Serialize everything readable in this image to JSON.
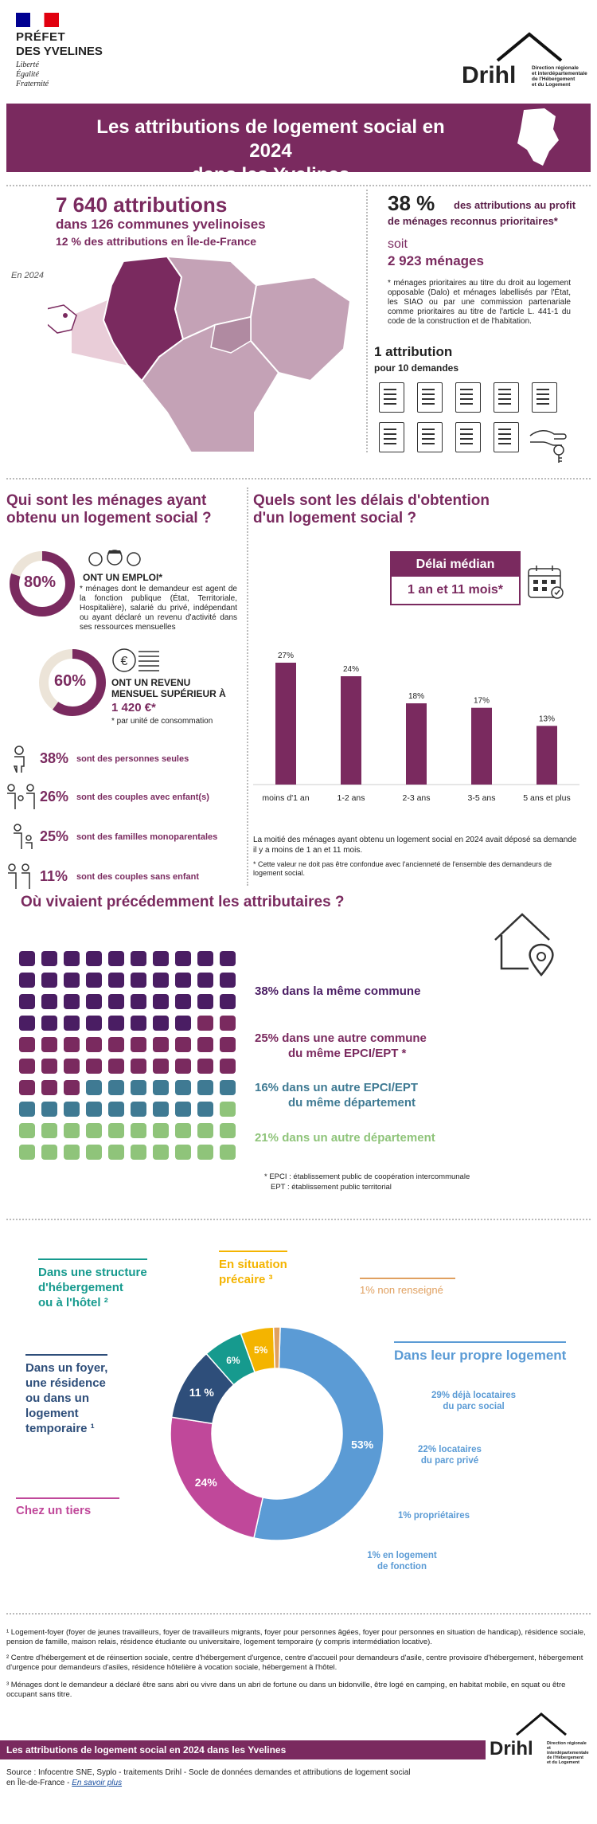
{
  "header": {
    "prefet_line1": "PRÉFET",
    "prefet_line2": "DES YVELINES",
    "motto1": "Liberté",
    "motto2": "Égalité",
    "motto3": "Fraternité",
    "drihl_name": "Drihl",
    "drihl_desc1": "Direction régionale",
    "drihl_desc2": "et interdépartementale",
    "drihl_desc3": "de l'Hébergement",
    "drihl_desc4": "et du Logement"
  },
  "banner": {
    "line1": "Les attributions de logement social en 2024",
    "line2": "dans les Yvelines"
  },
  "summary": {
    "attributions": "7 640 attributions",
    "communes": "dans 126 communes yvelinoises",
    "share_idf": "12 % des attributions en Île-de-France",
    "year_label": "En 2024",
    "prio_pct": "38 %",
    "prio_text1": "des attributions au profit",
    "prio_text2": "de ménages reconnus prioritaires*",
    "soit": "soit",
    "prio_count": "2 923 ménages",
    "prio_note": "* ménages prioritaires au titre du droit au logement opposable (Dalo) et ménages labellisés par l'État, les SIAO ou par une commission partenariale comme prioritaires au titre de l'article L. 441-1 du code de la construction et de l'habitation.",
    "ratio_title": "1 attribution",
    "ratio_sub": "pour 10 demandes"
  },
  "households": {
    "title1": "Qui sont les ménages ayant",
    "title2": "obtenu un logement social ?",
    "emploi_pct": "80%",
    "emploi_value": 0.8,
    "emploi_title": "ONT UN EMPLOI*",
    "emploi_note": "* ménages dont le demandeur est agent de la fonction publique (État, Territoriale, Hospitalière), salarié du privé, indépendant ou ayant déclaré un revenu d'activité dans ses ressources mensuelles",
    "revenu_pct": "60%",
    "revenu_value": 0.6,
    "revenu_title1": "ONT UN REVENU",
    "revenu_title2": "MENSUEL SUPÉRIEUR À",
    "revenu_amount": "1 420 €*",
    "revenu_note": "* par unité de consommation",
    "composition": [
      {
        "pct": "38%",
        "label": "sont des personnes seules"
      },
      {
        "pct": "26%",
        "label": "sont des couples avec enfant(s)"
      },
      {
        "pct": "25%",
        "label": "sont des familles monoparentales"
      },
      {
        "pct": "11%",
        "label": "sont des couples sans enfant"
      }
    ]
  },
  "delays": {
    "title1": "Quels sont les délais d'obtention",
    "title2": "d'un logement social ?",
    "median_label": "Délai médian",
    "median_value": "1 an et 11 mois*",
    "note_main": "La moitié des ménages ayant obtenu un logement social en 2024 avait déposé sa demande il y a moins de 1 an et 11 mois.",
    "note_star": "* Cette valeur ne doit pas être confondue avec l'ancienneté de l'ensemble des demandeurs de logement social."
  },
  "chart_data": {
    "type": "bar",
    "categories": [
      "moins d'1 an",
      "1-2 ans",
      "2-3 ans",
      "3-5 ans",
      "5 ans et plus"
    ],
    "values": [
      27,
      24,
      18,
      17,
      13
    ],
    "value_labels": [
      "27%",
      "24%",
      "18%",
      "17%",
      "13%"
    ],
    "ylim": [
      0,
      30
    ]
  },
  "origin": {
    "title": "Où vivaient précédemment les attributaires ?",
    "items": [
      {
        "l1": "38% dans la même commune",
        "l2": "",
        "color": "#4a1d63",
        "count": 38
      },
      {
        "l1": "25% dans une autre commune",
        "l2": "du même EPCI/EPT *",
        "color": "#7a2a5f",
        "count": 25
      },
      {
        "l1": "16% dans un autre EPCI/EPT",
        "l2": "du même département",
        "color": "#3f7a93",
        "count": 16
      },
      {
        "l1": "21% dans un autre département",
        "l2": "",
        "color": "#8fc47a",
        "count": 21
      }
    ],
    "note1": "* EPCI : établissement public de coopération intercommunale",
    "note2": "EPT : établissement public territorial"
  },
  "housing_donut": {
    "segments": [
      {
        "label": "53%",
        "value": 53,
        "color": "#5b9bd5"
      },
      {
        "label": "24%",
        "value": 24,
        "color": "#c0489a"
      },
      {
        "label": "11 %",
        "value": 11,
        "color": "#2e4e7a"
      },
      {
        "label": "6%",
        "value": 6,
        "color": "#169a8e"
      },
      {
        "label": "5%",
        "value": 5,
        "color": "#f4b400"
      },
      {
        "label": "",
        "value": 1,
        "color": "#e0a060"
      }
    ],
    "propre": "Dans leur propre logement",
    "propre_details": [
      {
        "l1": "29% déjà locataires",
        "l2": "du parc social"
      },
      {
        "l1": "22% locataires",
        "l2": "du parc privé"
      },
      {
        "l1": "1% propriétaires",
        "l2": ""
      },
      {
        "l1": "1% en logement",
        "l2": "de fonction"
      }
    ],
    "tiers": "Chez un tiers",
    "foyer1": "Dans un foyer,",
    "foyer2": "une résidence",
    "foyer3": "ou dans un",
    "foyer4": "logement",
    "foyer5": "temporaire ¹",
    "struct1": "Dans une structure",
    "struct2": "d'hébergement",
    "struct3": "ou à l'hôtel ²",
    "precaire1": "En situation",
    "precaire2": "précaire ³",
    "non_renseigne": "1% non renseigné"
  },
  "footnotes": {
    "n1": "¹ Logement-foyer (foyer de jeunes travailleurs,  foyer de travailleurs migrants, foyer pour personnes âgées, foyer pour personnes en situation de handicap), résidence sociale, pension de famille, maison relais, résidence étudiante ou universitaire, logement temporaire (y compris intermédiation locative).",
    "n2": "² Centre d'hébergement et de réinsertion sociale, centre d'hébergement d'urgence, centre d'accueil pour demandeurs d'asile, centre provisoire d'hébergement, hébergement d'urgence pour demandeurs d'asiles, résidence hôtelière à vocation sociale, hébergement à l'hôtel.",
    "n3": "³ Ménages dont le demandeur a déclaré être sans abri ou vivre dans un abri de fortune ou dans un bidonville, être logé en camping, en habitat mobile, en squat ou être occupant sans titre."
  },
  "footer": {
    "bar_title": "Les attributions de logement social en 2024 dans les Yvelines",
    "source1": "Source : Infocentre SNE, Syplo - traitements Drihl - Socle de données demandes et attributions de logement social",
    "source2": "en Île-de-France - ",
    "link": "En savoir plus"
  }
}
